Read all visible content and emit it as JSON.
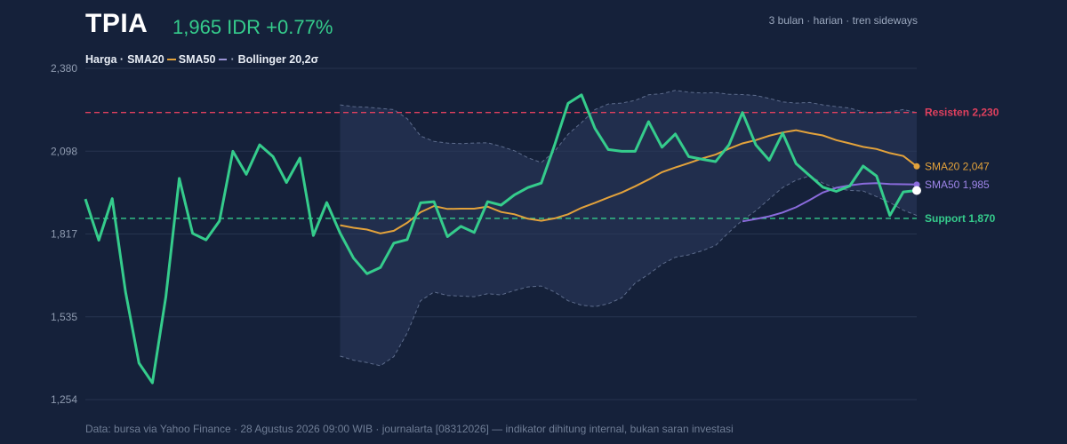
{
  "header": {
    "ticker": "TPIA",
    "price_change": "1,965 IDR +0.77%",
    "meta": "3 bulan · harian · tren sideways"
  },
  "legend": {
    "price": "Harga ·",
    "sma20": "SMA20",
    "sma50": "SMA50",
    "bollinger": "Bollinger 20,2σ"
  },
  "footer": "Data: bursa via Yahoo Finance · 28 Agustus 2026 09:00 WIB · journalarta [08312026] — indikator dihitung internal, bukan saran investasi",
  "colors": {
    "background": "#15213a",
    "price": "#35cc8c",
    "sma20": "#e3a23b",
    "sma50": "#8a6bdc",
    "bollinger": "#5d6c8c",
    "resistance": "#e0405e",
    "support": "#35cc8c",
    "grid": "#26344f"
  },
  "chart_data": {
    "type": "line",
    "title": "TPIA",
    "y_ticks": [
      "2,380",
      "2,098",
      "1,817",
      "1,535",
      "1,254"
    ],
    "ylim": [
      1254,
      2380
    ],
    "x": [
      0,
      1,
      2,
      3,
      4,
      5,
      6,
      7,
      8,
      9,
      10,
      11,
      12,
      13,
      14,
      15,
      16,
      17,
      18,
      19,
      20,
      21,
      22,
      23,
      24,
      25,
      26,
      27,
      28,
      29,
      30,
      31,
      32,
      33,
      34,
      35,
      36,
      37,
      38,
      39,
      40,
      41,
      42,
      43,
      44,
      45,
      46,
      47,
      48,
      49,
      50,
      51,
      52,
      53,
      54,
      55,
      56,
      57,
      58,
      59,
      60,
      61,
      62
    ],
    "series": [
      {
        "name": "Harga",
        "values": [
          1936,
          1796,
          1937,
          1620,
          1378,
          1311,
          1603,
          2006,
          1819,
          1797,
          1861,
          2098,
          2020,
          2120,
          2080,
          1992,
          2075,
          1812,
          1924,
          1820,
          1735,
          1682,
          1703,
          1786,
          1798,
          1923,
          1927,
          1808,
          1843,
          1822,
          1927,
          1915,
          1950,
          1975,
          1990,
          2120,
          2261,
          2290,
          2176,
          2104,
          2098,
          2098,
          2199,
          2112,
          2157,
          2080,
          2071,
          2063,
          2120,
          2230,
          2120,
          2068,
          2160,
          2056,
          2016,
          1976,
          1962,
          1980,
          2048,
          2014,
          1880,
          1960,
          1965
        ]
      },
      {
        "name": "SMA20",
        "values": [
          null,
          null,
          null,
          null,
          null,
          null,
          null,
          null,
          null,
          null,
          null,
          null,
          null,
          null,
          null,
          null,
          null,
          null,
          null,
          1847,
          1838,
          1832,
          1819,
          1828,
          1855,
          1891,
          1912,
          1902,
          1903,
          1903,
          1910,
          1892,
          1884,
          1869,
          1862,
          1870,
          1884,
          1906,
          1923,
          1941,
          1958,
          1979,
          2002,
          2027,
          2043,
          2058,
          2074,
          2087,
          2107,
          2125,
          2136,
          2151,
          2162,
          2170,
          2160,
          2152,
          2136,
          2125,
          2113,
          2106,
          2092,
          2082,
          2047
        ]
      },
      {
        "name": "SMA50",
        "values": [
          null,
          null,
          null,
          null,
          null,
          null,
          null,
          null,
          null,
          null,
          null,
          null,
          null,
          null,
          null,
          null,
          null,
          null,
          null,
          null,
          null,
          null,
          null,
          null,
          null,
          null,
          null,
          null,
          null,
          null,
          null,
          null,
          null,
          null,
          null,
          null,
          null,
          null,
          null,
          null,
          null,
          null,
          null,
          null,
          null,
          null,
          null,
          null,
          null,
          1860,
          1868,
          1877,
          1890,
          1908,
          1932,
          1958,
          1974,
          1982,
          1988,
          1990,
          1987,
          1986,
          1985
        ]
      },
      {
        "name": "Bollinger Upper",
        "values": [
          null,
          null,
          null,
          null,
          null,
          null,
          null,
          null,
          null,
          null,
          null,
          null,
          null,
          null,
          null,
          null,
          null,
          null,
          null,
          2256,
          2250,
          2248,
          2244,
          2240,
          2209,
          2150,
          2132,
          2126,
          2124,
          2126,
          2127,
          2115,
          2100,
          2076,
          2060,
          2098,
          2156,
          2196,
          2240,
          2259,
          2262,
          2271,
          2290,
          2294,
          2305,
          2299,
          2296,
          2298,
          2292,
          2291,
          2288,
          2278,
          2266,
          2262,
          2264,
          2256,
          2250,
          2245,
          2232,
          2229,
          2232,
          2240,
          2230
        ]
      },
      {
        "name": "Bollinger Lower",
        "values": [
          null,
          null,
          null,
          null,
          null,
          null,
          null,
          null,
          null,
          null,
          null,
          null,
          null,
          null,
          null,
          null,
          null,
          null,
          null,
          1402,
          1388,
          1380,
          1369,
          1400,
          1480,
          1590,
          1620,
          1608,
          1606,
          1604,
          1614,
          1610,
          1625,
          1637,
          1640,
          1620,
          1590,
          1575,
          1570,
          1580,
          1600,
          1650,
          1680,
          1714,
          1738,
          1746,
          1760,
          1778,
          1823,
          1864,
          1896,
          1936,
          1975,
          2000,
          2014,
          1990,
          1972,
          1965,
          1963,
          1944,
          1924,
          1898,
          1880
        ]
      }
    ],
    "annotations": [
      {
        "label": "Resisten 2,230",
        "value": 2230
      },
      {
        "label": "Support 1,870",
        "value": 1870
      },
      {
        "label": "SMA20 2,047",
        "value": 2047
      },
      {
        "label": "SMA50 1,985",
        "value": 1985
      }
    ],
    "grid": true,
    "legend_position": "top-left"
  }
}
